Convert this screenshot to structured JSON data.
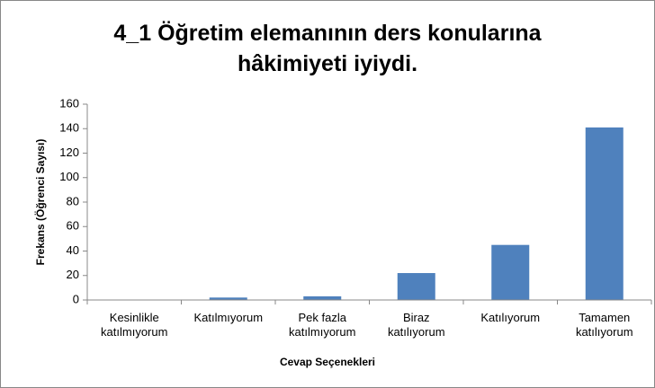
{
  "chart_data": {
    "type": "bar",
    "title": "4_1 Öğretim elemanının ders konularına\nhâkimiyeti iyiydi.",
    "x_label": "Cevap Seçenekleri",
    "y_label": "Frekans (Öğrenci Sayısı)",
    "categories": [
      "Kesinlikle\nkatılmıyorum",
      "Katılmıyorum",
      "Pek fazla\nkatılmıyorum",
      "Biraz\nkatılıyorum",
      "Katılıyorum",
      "Tamamen\nkatılıyorum"
    ],
    "values": [
      0,
      2,
      3,
      22,
      45,
      141
    ],
    "color": "#4f81bd",
    "ylim": [
      0,
      160
    ],
    "yticks": [
      0,
      20,
      40,
      60,
      80,
      100,
      120,
      140,
      160
    ],
    "grid": false
  }
}
